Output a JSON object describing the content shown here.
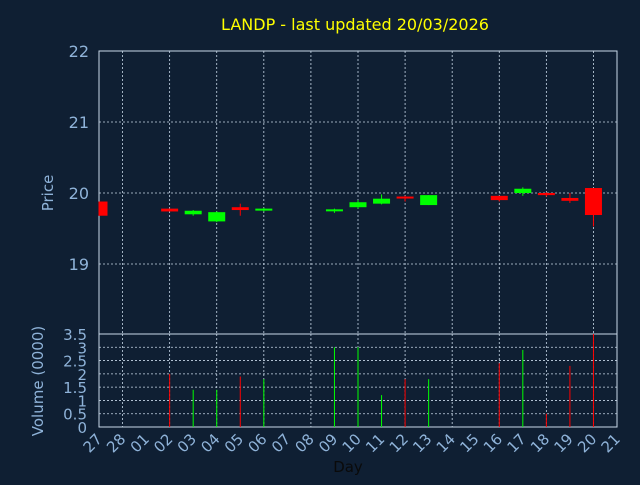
{
  "chart_data": {
    "type": "candlestick",
    "title": "LANDP - last updated 20/03/2026",
    "xlabel": "Day",
    "colors": {
      "background": "#0f1f33",
      "title": "#ffff00",
      "axis_text": "#8fb3d9",
      "grid": "#c8d8e8",
      "up": "#00ff00",
      "down": "#ff0000"
    },
    "price_panel": {
      "ylabel": "Price",
      "ylim": [
        19.0,
        22.0
      ],
      "yticks": [
        "22",
        "21",
        "20",
        "19"
      ],
      "grid": true
    },
    "volume_panel": {
      "ylabel": "Volume (0000)",
      "ylim": [
        0,
        3.5
      ],
      "yticks": [
        "3.5",
        "3",
        "2.5",
        "2",
        "1.5",
        "1",
        "0.5",
        "0"
      ],
      "grid": true
    },
    "days": [
      "27",
      "28",
      "01",
      "02",
      "03",
      "04",
      "05",
      "06",
      "07",
      "08",
      "09",
      "10",
      "11",
      "12",
      "13",
      "14",
      "15",
      "16",
      "17",
      "18",
      "19",
      "20",
      "21"
    ],
    "candles": [
      {
        "day": "27",
        "open": 19.88,
        "high": 19.88,
        "low": 19.68,
        "close": 19.68,
        "volume": 0
      },
      {
        "day": "02",
        "open": 19.78,
        "high": 19.78,
        "low": 19.74,
        "close": 19.74,
        "volume": 2.0
      },
      {
        "day": "03",
        "open": 19.7,
        "high": 19.76,
        "low": 19.68,
        "close": 19.75,
        "volume": 1.4
      },
      {
        "day": "04",
        "open": 19.6,
        "high": 19.74,
        "low": 19.59,
        "close": 19.73,
        "volume": 1.4
      },
      {
        "day": "05",
        "open": 19.8,
        "high": 19.85,
        "low": 19.68,
        "close": 19.76,
        "volume": 1.9
      },
      {
        "day": "06",
        "open": 19.76,
        "high": 19.79,
        "low": 19.74,
        "close": 19.78,
        "volume": 1.8
      },
      {
        "day": "09",
        "open": 19.75,
        "high": 19.78,
        "low": 19.72,
        "close": 19.77,
        "volume": 3.0
      },
      {
        "day": "10",
        "open": 19.8,
        "high": 19.9,
        "low": 19.78,
        "close": 19.87,
        "volume": 3.0
      },
      {
        "day": "11",
        "open": 19.85,
        "high": 19.98,
        "low": 19.84,
        "close": 19.92,
        "volume": 1.2
      },
      {
        "day": "12",
        "open": 19.95,
        "high": 19.96,
        "low": 19.88,
        "close": 19.93,
        "volume": 1.8
      },
      {
        "day": "13",
        "open": 19.83,
        "high": 19.97,
        "low": 19.83,
        "close": 19.97,
        "volume": 1.8
      },
      {
        "day": "16",
        "open": 19.96,
        "high": 19.96,
        "low": 19.88,
        "close": 19.9,
        "volume": 2.4
      },
      {
        "day": "17",
        "open": 20.0,
        "high": 20.08,
        "low": 19.96,
        "close": 20.06,
        "volume": 2.9
      },
      {
        "day": "18",
        "open": 20.0,
        "high": 20.01,
        "low": 19.95,
        "close": 19.97,
        "volume": 0.5
      },
      {
        "day": "19",
        "open": 19.93,
        "high": 20.0,
        "low": 19.86,
        "close": 19.89,
        "volume": 2.3
      },
      {
        "day": "20",
        "open": 20.07,
        "high": 20.07,
        "low": 19.53,
        "close": 19.69,
        "volume": 3.5
      }
    ]
  }
}
